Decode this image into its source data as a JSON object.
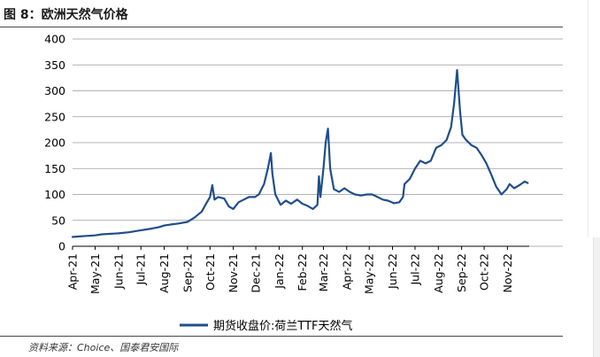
{
  "figure_title": "图 8：欧洲天然气价格",
  "source": "资料来源：Choice、国泰君安国际",
  "chart_data": {
    "type": "line",
    "title": "",
    "xlabel": "",
    "ylabel": "",
    "ylim": [
      0,
      400
    ],
    "yticks": [
      0,
      50,
      100,
      150,
      200,
      250,
      300,
      350,
      400
    ],
    "xlim": [
      "2021-04-01",
      "2022-11-30"
    ],
    "xtick_labels": [
      "Apr-21",
      "May-21",
      "Jun-21",
      "Jul-21",
      "Aug-21",
      "Sep-21",
      "Oct-21",
      "Nov-21",
      "Dec-21",
      "Jan-22",
      "Feb-22",
      "Mar-22",
      "Apr-22",
      "May-22",
      "Jun-22",
      "Jul-22",
      "Aug-22",
      "Sep-22",
      "Oct-22",
      "Nov-22"
    ],
    "grid": {
      "horizontal": true,
      "vertical": false
    },
    "legend_position": "bottom-center",
    "series": [
      {
        "name": "期货收盘价:荷兰TTF天然气",
        "color": "#1f4e8c",
        "points": [
          [
            "2021-04-01",
            18
          ],
          [
            "2021-04-10",
            19
          ],
          [
            "2021-04-20",
            20
          ],
          [
            "2021-05-01",
            21
          ],
          [
            "2021-05-10",
            23
          ],
          [
            "2021-05-20",
            24
          ],
          [
            "2021-06-01",
            25
          ],
          [
            "2021-06-15",
            27
          ],
          [
            "2021-07-01",
            31
          ],
          [
            "2021-07-15",
            34
          ],
          [
            "2021-07-25",
            37
          ],
          [
            "2021-08-01",
            40
          ],
          [
            "2021-08-10",
            42
          ],
          [
            "2021-08-20",
            44
          ],
          [
            "2021-09-01",
            47
          ],
          [
            "2021-09-10",
            55
          ],
          [
            "2021-09-20",
            67
          ],
          [
            "2021-09-25",
            80
          ],
          [
            "2021-10-01",
            95
          ],
          [
            "2021-10-04",
            118
          ],
          [
            "2021-10-07",
            90
          ],
          [
            "2021-10-12",
            95
          ],
          [
            "2021-10-20",
            92
          ],
          [
            "2021-10-26",
            77
          ],
          [
            "2021-11-01",
            72
          ],
          [
            "2021-11-08",
            85
          ],
          [
            "2021-11-15",
            90
          ],
          [
            "2021-11-22",
            95
          ],
          [
            "2021-11-30",
            95
          ],
          [
            "2021-12-05",
            100
          ],
          [
            "2021-12-12",
            120
          ],
          [
            "2021-12-17",
            150
          ],
          [
            "2021-12-21",
            180
          ],
          [
            "2021-12-23",
            140
          ],
          [
            "2021-12-27",
            100
          ],
          [
            "2022-01-03",
            80
          ],
          [
            "2022-01-10",
            88
          ],
          [
            "2022-01-17",
            82
          ],
          [
            "2022-01-25",
            90
          ],
          [
            "2022-02-01",
            82
          ],
          [
            "2022-02-08",
            78
          ],
          [
            "2022-02-15",
            72
          ],
          [
            "2022-02-21",
            80
          ],
          [
            "2022-02-23",
            135
          ],
          [
            "2022-02-25",
            95
          ],
          [
            "2022-03-01",
            150
          ],
          [
            "2022-03-04",
            200
          ],
          [
            "2022-03-07",
            227
          ],
          [
            "2022-03-10",
            150
          ],
          [
            "2022-03-15",
            110
          ],
          [
            "2022-03-22",
            105
          ],
          [
            "2022-03-29",
            112
          ],
          [
            "2022-04-05",
            105
          ],
          [
            "2022-04-12",
            100
          ],
          [
            "2022-04-20",
            98
          ],
          [
            "2022-04-28",
            100
          ],
          [
            "2022-05-05",
            100
          ],
          [
            "2022-05-12",
            95
          ],
          [
            "2022-05-19",
            90
          ],
          [
            "2022-05-26",
            88
          ],
          [
            "2022-06-03",
            83
          ],
          [
            "2022-06-10",
            85
          ],
          [
            "2022-06-15",
            95
          ],
          [
            "2022-06-17",
            120
          ],
          [
            "2022-06-24",
            130
          ],
          [
            "2022-07-01",
            150
          ],
          [
            "2022-07-08",
            165
          ],
          [
            "2022-07-15",
            160
          ],
          [
            "2022-07-22",
            165
          ],
          [
            "2022-07-29",
            190
          ],
          [
            "2022-08-05",
            195
          ],
          [
            "2022-08-12",
            205
          ],
          [
            "2022-08-18",
            230
          ],
          [
            "2022-08-22",
            275
          ],
          [
            "2022-08-26",
            340
          ],
          [
            "2022-08-30",
            260
          ],
          [
            "2022-09-02",
            215
          ],
          [
            "2022-09-07",
            205
          ],
          [
            "2022-09-14",
            195
          ],
          [
            "2022-09-21",
            190
          ],
          [
            "2022-09-28",
            175
          ],
          [
            "2022-10-04",
            160
          ],
          [
            "2022-10-10",
            140
          ],
          [
            "2022-10-17",
            115
          ],
          [
            "2022-10-24",
            100
          ],
          [
            "2022-10-31",
            110
          ],
          [
            "2022-11-04",
            120
          ],
          [
            "2022-11-10",
            112
          ],
          [
            "2022-11-17",
            118
          ],
          [
            "2022-11-24",
            125
          ],
          [
            "2022-11-28",
            122
          ]
        ]
      }
    ]
  }
}
